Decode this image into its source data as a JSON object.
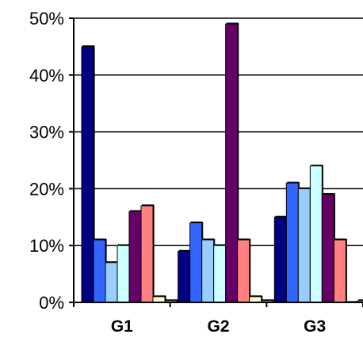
{
  "chart_data": {
    "type": "bar",
    "categories": [
      "G1",
      "G2",
      "G3"
    ],
    "ylim": [
      0,
      50
    ],
    "y_tick_labels": [
      "0%",
      "10%",
      "20%",
      "30%",
      "40%",
      "50%"
    ],
    "y_ticks": [
      0,
      10,
      20,
      30,
      40,
      50
    ],
    "grid": true,
    "legend": "none",
    "series": [
      {
        "color": "#000080",
        "values": [
          45,
          9,
          15
        ]
      },
      {
        "color": "#3366FF",
        "values": [
          11,
          14,
          21
        ]
      },
      {
        "color": "#99CCFF",
        "values": [
          7,
          11,
          20
        ]
      },
      {
        "color": "#CCFFFF",
        "values": [
          10,
          10,
          24
        ]
      },
      {
        "color": "#660066",
        "values": [
          16,
          49,
          19
        ]
      },
      {
        "color": "#FF8080",
        "values": [
          17,
          11,
          11
        ]
      },
      {
        "color": "#FFFFCC",
        "values": [
          1,
          1,
          0
        ]
      },
      {
        "color": "#C0C0C0",
        "values": [
          0.3,
          0.3,
          0.3
        ]
      }
    ]
  }
}
